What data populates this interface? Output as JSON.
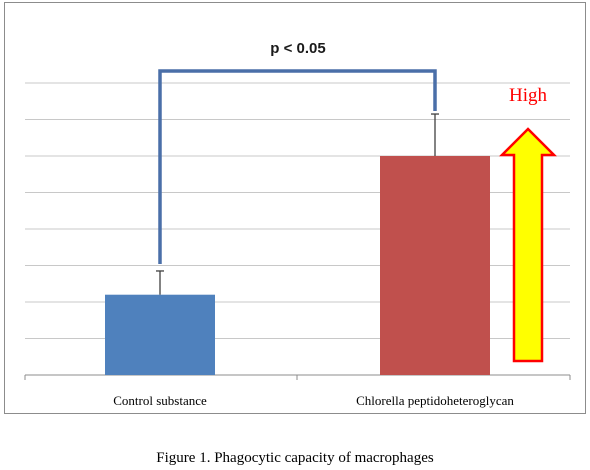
{
  "chart_data": {
    "type": "bar",
    "categories": [
      "Control substance",
      "Chlorella peptidoheteroglycan"
    ],
    "values": [
      2.2,
      6.0
    ],
    "error_upper": [
      2.85,
      7.15
    ],
    "ylim": [
      0,
      8.0
    ],
    "gridlines": 8,
    "grid": true,
    "yticks_labeled": false,
    "colors": [
      "#4f81bd",
      "#c0504d"
    ],
    "significance": {
      "label": "p < 0.05",
      "line_color": "#4a6fa8"
    },
    "arrow": {
      "label": "High",
      "fill": "#ffff00",
      "stroke": "#ff0000",
      "label_color": "#ff0000"
    }
  },
  "caption": "Figure 1. Phagocytic capacity of macrophages"
}
